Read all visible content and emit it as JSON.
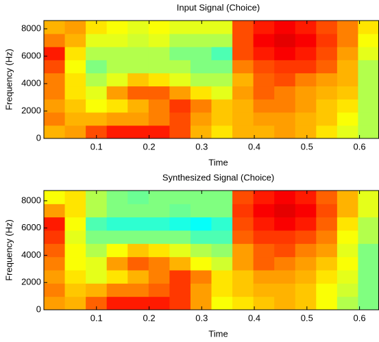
{
  "chart_data": [
    {
      "type": "heatmap",
      "title": "Input Signal (Choice)",
      "xlabel": "Time",
      "ylabel": "Frequency (Hz)",
      "colormap": "jet",
      "xlim": [
        0,
        0.637
      ],
      "ylim": [
        0,
        8600
      ],
      "xticks": [
        0.1,
        0.2,
        0.3,
        0.4,
        0.5,
        0.6
      ],
      "yticks": [
        0,
        2000,
        4000,
        6000,
        8000
      ],
      "z": [
        [
          0.7,
          0.72,
          0.8,
          0.85,
          0.85,
          0.85,
          0.8,
          0.7,
          0.65,
          0.7,
          0.7,
          0.72,
          0.7,
          0.65,
          0.6,
          0.55
        ],
        [
          0.75,
          0.7,
          0.7,
          0.72,
          0.72,
          0.75,
          0.8,
          0.72,
          0.68,
          0.7,
          0.72,
          0.72,
          0.7,
          0.68,
          0.62,
          0.55
        ],
        [
          0.72,
          0.68,
          0.62,
          0.65,
          0.7,
          0.75,
          0.82,
          0.75,
          0.68,
          0.7,
          0.75,
          0.75,
          0.72,
          0.68,
          0.65,
          0.55
        ],
        [
          0.75,
          0.65,
          0.6,
          0.72,
          0.78,
          0.78,
          0.72,
          0.65,
          0.6,
          0.72,
          0.78,
          0.75,
          0.72,
          0.7,
          0.68,
          0.55
        ],
        [
          0.75,
          0.65,
          0.55,
          0.6,
          0.68,
          0.65,
          0.6,
          0.55,
          0.55,
          0.7,
          0.78,
          0.8,
          0.75,
          0.72,
          0.7,
          0.55
        ],
        [
          0.8,
          0.62,
          0.5,
          0.55,
          0.55,
          0.55,
          0.55,
          0.5,
          0.5,
          0.75,
          0.8,
          0.82,
          0.82,
          0.78,
          0.7,
          0.55
        ],
        [
          0.85,
          0.65,
          0.55,
          0.55,
          0.55,
          0.55,
          0.5,
          0.5,
          0.45,
          0.8,
          0.85,
          0.88,
          0.85,
          0.8,
          0.72,
          0.6
        ],
        [
          0.75,
          0.7,
          0.6,
          0.6,
          0.58,
          0.6,
          0.55,
          0.55,
          0.55,
          0.8,
          0.88,
          0.9,
          0.88,
          0.82,
          0.75,
          0.62
        ],
        [
          0.7,
          0.72,
          0.65,
          0.62,
          0.6,
          0.62,
          0.6,
          0.6,
          0.6,
          0.8,
          0.85,
          0.88,
          0.85,
          0.8,
          0.75,
          0.65
        ]
      ]
    },
    {
      "type": "heatmap",
      "title": "Synthesized Signal (Choice)",
      "xlabel": "Time",
      "ylabel": "Frequency (Hz)",
      "colormap": "jet",
      "xlim": [
        0,
        0.637
      ],
      "ylim": [
        0,
        8750
      ],
      "xticks": [
        0.1,
        0.2,
        0.3,
        0.4,
        0.5,
        0.6
      ],
      "yticks": [
        0,
        2000,
        4000,
        6000,
        8000
      ],
      "z": [
        [
          0.72,
          0.7,
          0.78,
          0.85,
          0.85,
          0.85,
          0.82,
          0.72,
          0.62,
          0.65,
          0.68,
          0.7,
          0.68,
          0.62,
          0.55,
          0.5
        ],
        [
          0.75,
          0.68,
          0.7,
          0.75,
          0.75,
          0.78,
          0.82,
          0.72,
          0.65,
          0.68,
          0.7,
          0.7,
          0.68,
          0.62,
          0.58,
          0.5
        ],
        [
          0.72,
          0.65,
          0.6,
          0.65,
          0.7,
          0.75,
          0.82,
          0.75,
          0.65,
          0.68,
          0.72,
          0.72,
          0.7,
          0.65,
          0.6,
          0.5
        ],
        [
          0.75,
          0.62,
          0.6,
          0.72,
          0.78,
          0.75,
          0.7,
          0.62,
          0.58,
          0.72,
          0.78,
          0.75,
          0.72,
          0.68,
          0.62,
          0.5
        ],
        [
          0.78,
          0.62,
          0.55,
          0.62,
          0.68,
          0.65,
          0.6,
          0.55,
          0.52,
          0.72,
          0.78,
          0.8,
          0.75,
          0.72,
          0.6,
          0.5
        ],
        [
          0.82,
          0.6,
          0.5,
          0.5,
          0.5,
          0.5,
          0.5,
          0.45,
          0.45,
          0.78,
          0.82,
          0.82,
          0.8,
          0.75,
          0.62,
          0.55
        ],
        [
          0.85,
          0.62,
          0.45,
          0.42,
          0.42,
          0.42,
          0.4,
          0.38,
          0.42,
          0.8,
          0.85,
          0.88,
          0.85,
          0.78,
          0.65,
          0.55
        ],
        [
          0.72,
          0.65,
          0.55,
          0.5,
          0.5,
          0.5,
          0.48,
          0.5,
          0.5,
          0.82,
          0.88,
          0.9,
          0.88,
          0.8,
          0.7,
          0.6
        ],
        [
          0.62,
          0.65,
          0.55,
          0.5,
          0.48,
          0.5,
          0.5,
          0.5,
          0.5,
          0.8,
          0.85,
          0.88,
          0.85,
          0.78,
          0.7,
          0.6
        ]
      ]
    }
  ]
}
